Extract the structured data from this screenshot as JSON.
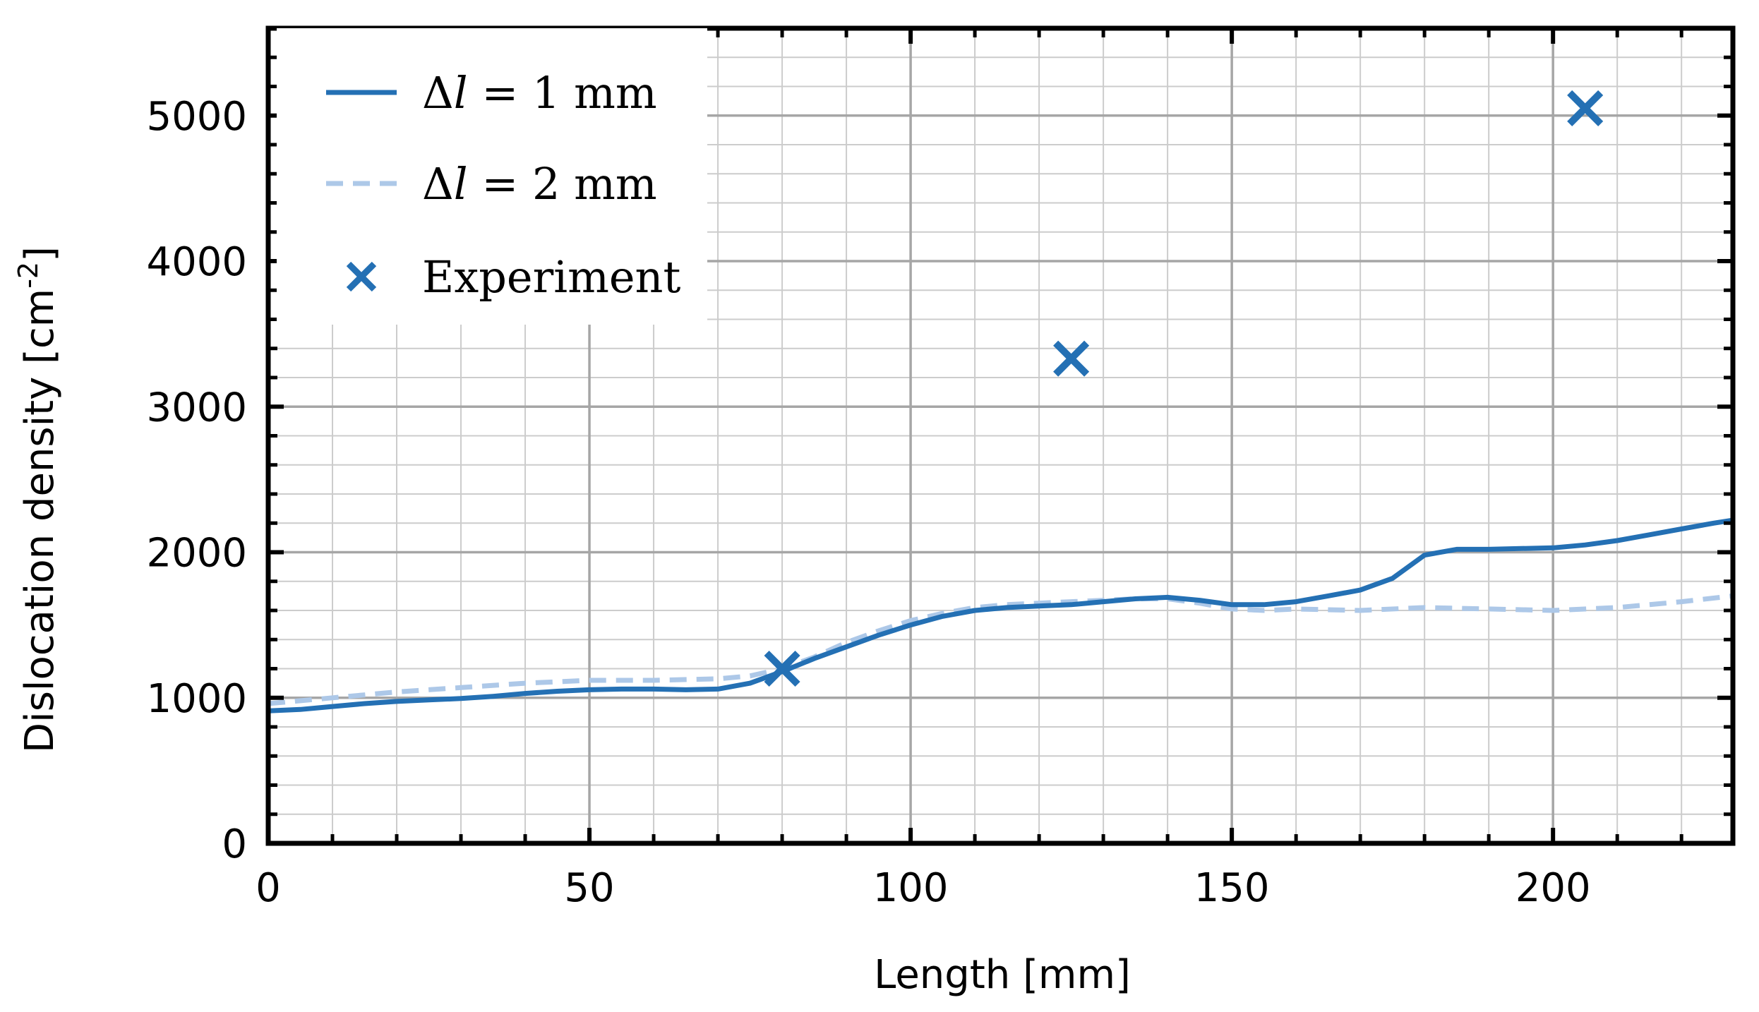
{
  "chart_data": {
    "type": "line",
    "xlabel": "Length [mm]",
    "ylabel": "Dislocation density [cm",
    "ylabel_sup": "-2",
    "ylabel_end": "]",
    "xlim": [
      0,
      228
    ],
    "ylim": [
      0,
      5600
    ],
    "xticks": [
      0,
      50,
      100,
      150,
      200
    ],
    "yticks": [
      0,
      1000,
      2000,
      3000,
      4000,
      5000
    ],
    "xminor_step": 10,
    "yminor_step": 200,
    "grid": true,
    "legend_placement": "top-left",
    "series": [
      {
        "name": "Δl = 1 mm",
        "style": "solid",
        "color": "#2470b4",
        "x": [
          0,
          5,
          10,
          15,
          20,
          25,
          30,
          35,
          40,
          45,
          50,
          55,
          60,
          65,
          70,
          75,
          80,
          85,
          90,
          95,
          100,
          105,
          110,
          115,
          120,
          125,
          130,
          135,
          140,
          145,
          150,
          155,
          160,
          165,
          170,
          175,
          180,
          185,
          190,
          195,
          200,
          205,
          210,
          215,
          220,
          225,
          228
        ],
        "y": [
          910,
          920,
          940,
          960,
          975,
          985,
          995,
          1010,
          1030,
          1045,
          1055,
          1060,
          1060,
          1055,
          1060,
          1100,
          1180,
          1270,
          1350,
          1430,
          1500,
          1560,
          1600,
          1620,
          1630,
          1640,
          1660,
          1680,
          1690,
          1670,
          1640,
          1640,
          1660,
          1700,
          1740,
          1820,
          1980,
          2020,
          2020,
          2025,
          2030,
          2050,
          2080,
          2120,
          2160,
          2200,
          2220
        ]
      },
      {
        "name": "Δl = 2 mm",
        "style": "dashed",
        "color": "#adc8e8",
        "x": [
          0,
          10,
          20,
          30,
          40,
          50,
          60,
          70,
          75,
          80,
          85,
          90,
          95,
          100,
          105,
          110,
          115,
          120,
          125,
          130,
          135,
          140,
          145,
          150,
          155,
          160,
          170,
          180,
          190,
          200,
          210,
          220,
          228
        ],
        "y": [
          960,
          1000,
          1040,
          1070,
          1100,
          1120,
          1120,
          1130,
          1150,
          1200,
          1280,
          1380,
          1460,
          1530,
          1580,
          1620,
          1640,
          1650,
          1660,
          1670,
          1680,
          1680,
          1650,
          1610,
          1600,
          1610,
          1600,
          1620,
          1610,
          1600,
          1620,
          1660,
          1700
        ]
      }
    ],
    "scatter": {
      "name": "Experiment",
      "marker": "x",
      "color": "#2470b4",
      "points": [
        {
          "x": 80,
          "y": 1200
        },
        {
          "x": 125,
          "y": 3330
        },
        {
          "x": 205,
          "y": 5050
        }
      ]
    },
    "legend": {
      "entry1_prefix": "Δ",
      "entry1_var": "l",
      "entry1_suffix": " = 1 mm",
      "entry2_prefix": "Δ",
      "entry2_var": "l",
      "entry2_suffix": " = 2 mm",
      "entry3": "Experiment"
    }
  }
}
